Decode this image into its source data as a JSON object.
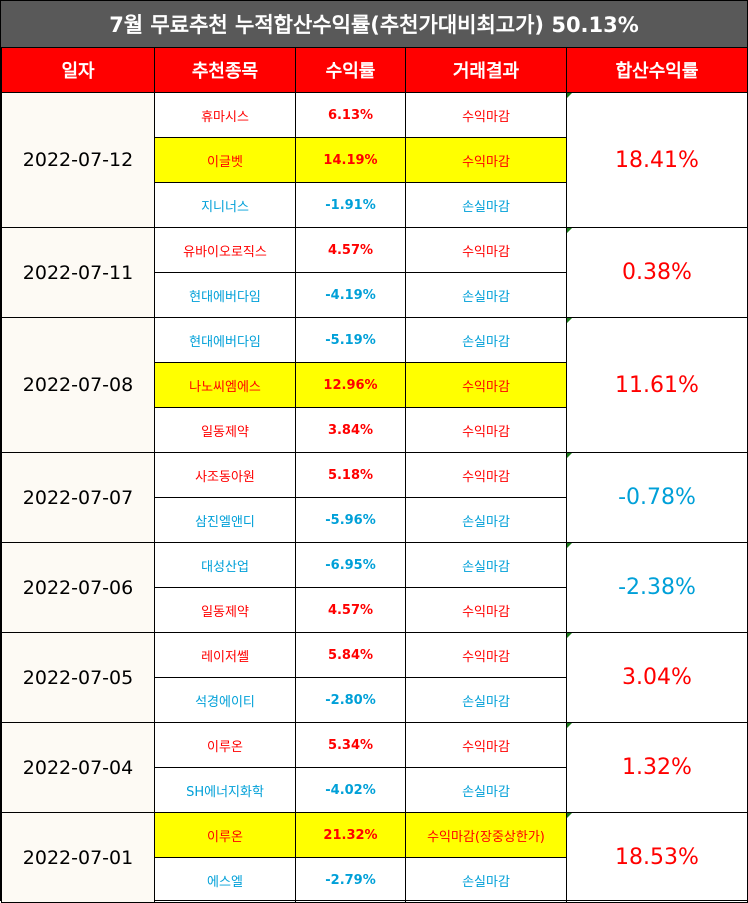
{
  "title": "7월 무료추천 누적합산수익률(추천가대비최고가) 50.13%",
  "headers": [
    "일자",
    "추천종목",
    "수익률",
    "거래결과",
    "합산수익률"
  ],
  "colors": {
    "header_bg": "#ff0000",
    "title_bg": "#595959",
    "profit": "#ff0000",
    "loss": "#00a0d8",
    "highlight": "#ffff00"
  },
  "groups": [
    {
      "date": "2022-07-12",
      "total": "18.41%",
      "total_type": "profit",
      "rows": [
        {
          "stock": "휴마시스",
          "return": "6.13%",
          "result": "수익마감",
          "type": "profit",
          "highlight": false
        },
        {
          "stock": "이글벳",
          "return": "14.19%",
          "result": "수익마감",
          "type": "profit",
          "highlight": true
        },
        {
          "stock": "지니너스",
          "return": "-1.91%",
          "result": "손실마감",
          "type": "loss",
          "highlight": false
        }
      ]
    },
    {
      "date": "2022-07-11",
      "total": "0.38%",
      "total_type": "profit",
      "rows": [
        {
          "stock": "유바이오로직스",
          "return": "4.57%",
          "result": "수익마감",
          "type": "profit",
          "highlight": false
        },
        {
          "stock": "현대에버다임",
          "return": "-4.19%",
          "result": "손실마감",
          "type": "loss",
          "highlight": false
        }
      ]
    },
    {
      "date": "2022-07-08",
      "total": "11.61%",
      "total_type": "profit",
      "rows": [
        {
          "stock": "현대에버다임",
          "return": "-5.19%",
          "result": "손실마감",
          "type": "loss",
          "highlight": false
        },
        {
          "stock": "나노씨엠에스",
          "return": "12.96%",
          "result": "수익마감",
          "type": "profit",
          "highlight": true
        },
        {
          "stock": "일동제약",
          "return": "3.84%",
          "result": "수익마감",
          "type": "profit",
          "highlight": false
        }
      ]
    },
    {
      "date": "2022-07-07",
      "total": "-0.78%",
      "total_type": "loss",
      "rows": [
        {
          "stock": "사조동아원",
          "return": "5.18%",
          "result": "수익마감",
          "type": "profit",
          "highlight": false
        },
        {
          "stock": "삼진엘앤디",
          "return": "-5.96%",
          "result": "손실마감",
          "type": "loss",
          "highlight": false
        }
      ]
    },
    {
      "date": "2022-07-06",
      "total": "-2.38%",
      "total_type": "loss",
      "rows": [
        {
          "stock": "대성산업",
          "return": "-6.95%",
          "result": "손실마감",
          "type": "loss",
          "highlight": false
        },
        {
          "stock": "일동제약",
          "return": "4.57%",
          "result": "수익마감",
          "type": "profit",
          "highlight": false
        }
      ]
    },
    {
      "date": "2022-07-05",
      "total": "3.04%",
      "total_type": "profit",
      "rows": [
        {
          "stock": "레이저쎌",
          "return": "5.84%",
          "result": "수익마감",
          "type": "profit",
          "highlight": false
        },
        {
          "stock": "석경에이티",
          "return": "-2.80%",
          "result": "손실마감",
          "type": "loss",
          "highlight": false
        }
      ]
    },
    {
      "date": "2022-07-04",
      "total": "1.32%",
      "total_type": "profit",
      "rows": [
        {
          "stock": "이루온",
          "return": "5.34%",
          "result": "수익마감",
          "type": "profit",
          "highlight": false
        },
        {
          "stock": "SH에너지화학",
          "return": "-4.02%",
          "result": "손실마감",
          "type": "loss",
          "highlight": false
        }
      ]
    },
    {
      "date": "2022-07-01",
      "total": "18.53%",
      "total_type": "profit",
      "rows": [
        {
          "stock": "이루온",
          "return": "21.32%",
          "result": "수익마감(장중상한가)",
          "type": "profit",
          "highlight": true
        },
        {
          "stock": "에스엘",
          "return": "-2.79%",
          "result": "손실마감",
          "type": "loss",
          "highlight": false
        }
      ]
    }
  ]
}
